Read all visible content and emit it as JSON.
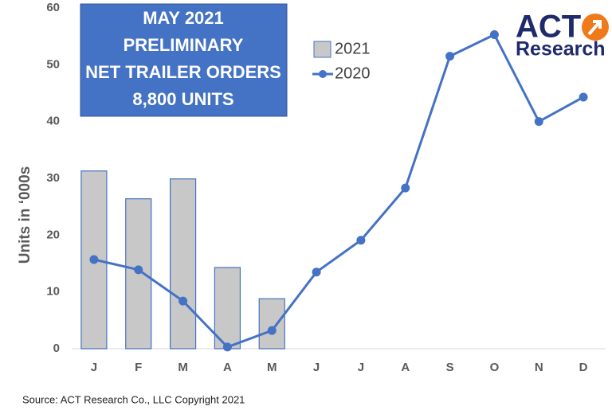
{
  "chart_data": {
    "type": "bar",
    "annotation": [
      "MAY 2021",
      "PRELIMINARY",
      "NET TRAILER ORDERS",
      "8,800 UNITS"
    ],
    "logo": [
      "ACT",
      "Research"
    ],
    "source": "Source: ACT Research Co., LLC  Copyright 2021",
    "y_label": "Units in ‘000s",
    "categories": [
      "J",
      "F",
      "M",
      "A",
      "M",
      "J",
      "J",
      "A",
      "S",
      "O",
      "N",
      "D"
    ],
    "series": [
      {
        "name": "2021",
        "type": "bar",
        "color": "#c8c8c8",
        "edge_color": "#4472c4",
        "values": [
          31.3,
          26.4,
          29.9,
          14.3,
          8.8,
          null,
          null,
          null,
          null,
          null,
          null,
          null
        ]
      },
      {
        "name": "2020",
        "type": "line",
        "color": "#4472c4",
        "values": [
          15.7,
          13.9,
          8.4,
          0.3,
          3.2,
          13.5,
          19.1,
          28.3,
          51.5,
          55.3,
          40.0,
          44.3
        ]
      }
    ],
    "ylim": [
      0,
      60
    ],
    "yticks": [
      0,
      10,
      20,
      30,
      40,
      50,
      60
    ],
    "grid": false
  }
}
